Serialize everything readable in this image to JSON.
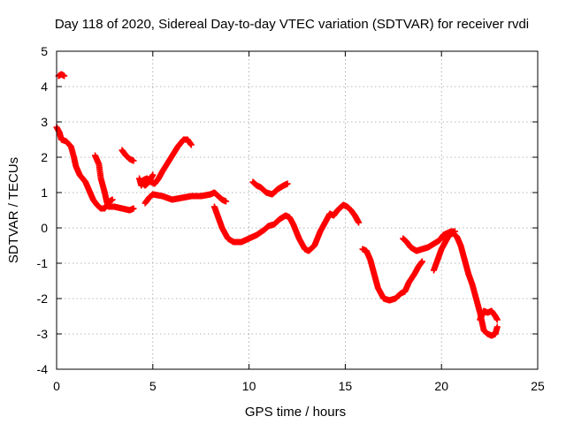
{
  "chart_data": {
    "type": "scatter",
    "title": "Day 118 of 2020, Sidereal Day-to-day VTEC variation (SDTVAR) for receiver rvdi",
    "xlabel": "GPS time / hours",
    "ylabel": "SDTVAR / TECUs",
    "xlim": [
      0,
      25
    ],
    "ylim": [
      -4,
      5
    ],
    "xticks": [
      "0",
      "5",
      "10",
      "15",
      "20",
      "25"
    ],
    "yticks": [
      "-4",
      "-3",
      "-2",
      "-1",
      "0",
      "1",
      "2",
      "3",
      "4",
      "5"
    ],
    "grid": true,
    "marker": "plus",
    "color": "#ff0000",
    "segments": [
      [
        [
          0.1,
          4.3
        ],
        [
          0.25,
          4.35
        ],
        [
          0.4,
          4.3
        ]
      ],
      [
        [
          0.0,
          2.85
        ],
        [
          0.15,
          2.7
        ],
        [
          0.25,
          2.5
        ],
        [
          0.5,
          2.45
        ],
        [
          0.75,
          2.3
        ],
        [
          0.9,
          2.0
        ],
        [
          1.0,
          1.75
        ],
        [
          1.2,
          1.5
        ],
        [
          1.5,
          1.3
        ],
        [
          1.7,
          1.05
        ],
        [
          1.9,
          0.8
        ],
        [
          2.1,
          0.65
        ],
        [
          2.3,
          0.55
        ],
        [
          2.5,
          0.55
        ],
        [
          2.75,
          0.75
        ],
        [
          2.9,
          0.8
        ]
      ],
      [
        [
          2.0,
          2.05
        ],
        [
          2.2,
          1.8
        ],
        [
          2.3,
          1.4
        ],
        [
          2.5,
          1.0
        ],
        [
          2.6,
          0.75
        ],
        [
          2.7,
          0.6
        ],
        [
          3.0,
          0.6
        ],
        [
          3.4,
          0.55
        ],
        [
          3.8,
          0.5
        ],
        [
          4.0,
          0.55
        ]
      ],
      [
        [
          3.4,
          2.2
        ],
        [
          3.6,
          2.05
        ],
        [
          3.8,
          1.95
        ],
        [
          4.0,
          1.9
        ]
      ],
      [
        [
          4.3,
          1.4
        ],
        [
          4.4,
          1.2
        ],
        [
          4.5,
          1.35
        ],
        [
          4.7,
          1.4
        ],
        [
          4.9,
          1.3
        ],
        [
          5.1,
          1.25
        ],
        [
          5.3,
          1.4
        ],
        [
          5.5,
          1.6
        ],
        [
          5.9,
          1.95
        ],
        [
          6.3,
          2.3
        ],
        [
          6.6,
          2.5
        ],
        [
          6.8,
          2.5
        ],
        [
          7.0,
          2.35
        ]
      ],
      [
        [
          5.0,
          1.5
        ],
        [
          4.8,
          1.3
        ],
        [
          4.6,
          1.2
        ],
        [
          4.5,
          1.25
        ],
        [
          4.6,
          1.3
        ]
      ],
      [
        [
          4.6,
          0.7
        ],
        [
          4.8,
          0.85
        ],
        [
          5.0,
          0.95
        ],
        [
          5.5,
          0.9
        ],
        [
          6.0,
          0.8
        ],
        [
          6.5,
          0.85
        ],
        [
          7.0,
          0.9
        ],
        [
          7.5,
          0.9
        ],
        [
          8.0,
          0.95
        ],
        [
          8.2,
          1.0
        ],
        [
          8.4,
          0.9
        ],
        [
          8.6,
          0.8
        ],
        [
          8.8,
          0.75
        ]
      ],
      [
        [
          8.2,
          0.6
        ],
        [
          8.4,
          0.3
        ],
        [
          8.6,
          0.0
        ],
        [
          8.9,
          -0.3
        ],
        [
          9.2,
          -0.4
        ],
        [
          9.6,
          -0.4
        ],
        [
          10.0,
          -0.3
        ],
        [
          10.4,
          -0.2
        ],
        [
          10.8,
          -0.05
        ],
        [
          11.0,
          0.05
        ],
        [
          11.3,
          0.1
        ],
        [
          11.6,
          0.25
        ],
        [
          11.9,
          0.35
        ],
        [
          12.1,
          0.3
        ],
        [
          12.3,
          0.1
        ],
        [
          12.6,
          -0.3
        ],
        [
          12.9,
          -0.6
        ],
        [
          13.1,
          -0.65
        ],
        [
          13.4,
          -0.5
        ],
        [
          13.7,
          -0.1
        ],
        [
          14.0,
          0.2
        ],
        [
          14.2,
          0.4
        ],
        [
          14.4,
          0.35
        ],
        [
          14.6,
          0.5
        ],
        [
          14.9,
          0.65
        ],
        [
          15.1,
          0.6
        ],
        [
          15.3,
          0.5
        ],
        [
          15.5,
          0.35
        ],
        [
          15.7,
          0.15
        ]
      ],
      [
        [
          10.2,
          1.3
        ],
        [
          10.4,
          1.2
        ],
        [
          10.6,
          1.15
        ],
        [
          10.9,
          1.0
        ],
        [
          11.2,
          0.95
        ],
        [
          11.5,
          1.1
        ],
        [
          11.8,
          1.2
        ],
        [
          12.0,
          1.25
        ]
      ],
      [
        [
          15.9,
          -0.6
        ],
        [
          16.1,
          -0.65
        ],
        [
          16.3,
          -0.9
        ],
        [
          16.5,
          -1.3
        ],
        [
          16.7,
          -1.7
        ],
        [
          17.0,
          -2.0
        ],
        [
          17.3,
          -2.05
        ],
        [
          17.6,
          -2.0
        ],
        [
          17.9,
          -1.85
        ],
        [
          18.1,
          -1.8
        ],
        [
          18.3,
          -1.55
        ],
        [
          18.6,
          -1.3
        ],
        [
          18.8,
          -1.1
        ],
        [
          19.0,
          -0.95
        ]
      ],
      [
        [
          18.0,
          -0.3
        ],
        [
          18.2,
          -0.4
        ],
        [
          18.4,
          -0.55
        ],
        [
          18.7,
          -0.65
        ],
        [
          19.0,
          -0.6
        ],
        [
          19.3,
          -0.55
        ],
        [
          19.6,
          -0.45
        ],
        [
          19.9,
          -0.35
        ],
        [
          20.1,
          -0.2
        ],
        [
          20.3,
          -0.15
        ],
        [
          20.5,
          -0.1
        ],
        [
          20.7,
          -0.1
        ]
      ],
      [
        [
          19.6,
          -1.2
        ],
        [
          19.8,
          -0.9
        ],
        [
          20.0,
          -0.6
        ],
        [
          20.2,
          -0.4
        ],
        [
          20.4,
          -0.2
        ],
        [
          20.6,
          -0.15
        ],
        [
          20.8,
          -0.25
        ],
        [
          21.0,
          -0.5
        ],
        [
          21.2,
          -0.9
        ],
        [
          21.4,
          -1.3
        ],
        [
          21.6,
          -1.6
        ],
        [
          21.8,
          -2.0
        ],
        [
          22.0,
          -2.4
        ],
        [
          22.2,
          -2.9
        ],
        [
          22.4,
          -3.0
        ],
        [
          22.6,
          -3.05
        ],
        [
          22.8,
          -3.0
        ],
        [
          22.9,
          -2.8
        ]
      ],
      [
        [
          22.0,
          -2.6
        ],
        [
          22.2,
          -2.35
        ],
        [
          22.4,
          -2.4
        ],
        [
          22.6,
          -2.35
        ],
        [
          22.8,
          -2.5
        ],
        [
          22.9,
          -2.6
        ]
      ]
    ]
  }
}
